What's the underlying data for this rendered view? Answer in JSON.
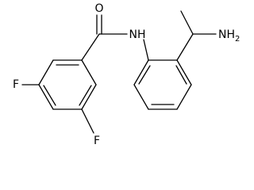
{
  "atoms": {
    "oxygen": "O",
    "amide_nitrogen": "NH",
    "amine": {
      "text": "NH",
      "subscript": "2"
    },
    "fluorine_left": "F",
    "fluorine_bottom": "F"
  }
}
